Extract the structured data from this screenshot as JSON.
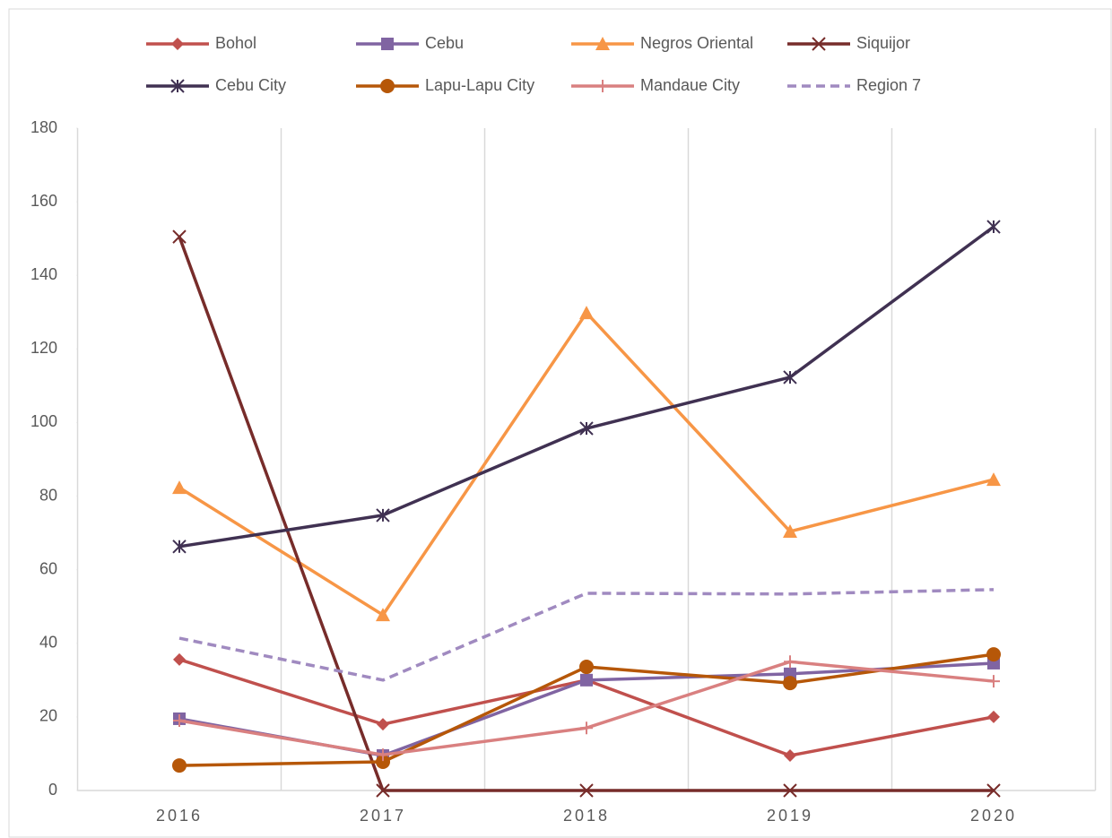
{
  "chart_data": {
    "type": "line",
    "categories": [
      "2016",
      "2017",
      "2018",
      "2019",
      "2020"
    ],
    "series": [
      {
        "name": "Bohol",
        "color": "#c0504d",
        "marker": "diamond",
        "values": [
          35.6,
          18,
          30,
          9.5,
          20
        ]
      },
      {
        "name": "Cebu",
        "color": "#8064a2",
        "marker": "square",
        "values": [
          19.5,
          9.5,
          30,
          31.7,
          34.6
        ]
      },
      {
        "name": "Negros Oriental",
        "color": "#f79646",
        "marker": "triangle",
        "values": [
          82.3,
          47.7,
          129.8,
          70.4,
          84.5
        ]
      },
      {
        "name": "Siquijor",
        "color": "#772c2a",
        "marker": "x",
        "values": [
          150.5,
          0,
          0,
          0,
          0
        ]
      },
      {
        "name": "Cebu City",
        "color": "#403152",
        "marker": "star",
        "values": [
          66.3,
          74.8,
          98.4,
          112.3,
          153.2
        ]
      },
      {
        "name": "Lapu-Lapu City",
        "color": "#b65708",
        "marker": "circle",
        "values": [
          6.8,
          7.8,
          33.6,
          29.2,
          37
        ]
      },
      {
        "name": "Mandaue City",
        "color": "#d98080",
        "marker": "plus",
        "values": [
          19,
          9.7,
          17,
          35,
          29.7
        ]
      },
      {
        "name": "Region 7",
        "color": "#a08ac0",
        "marker": "none",
        "dash": true,
        "values": [
          41.4,
          30,
          53.6,
          53.4,
          54.6
        ]
      }
    ],
    "ylim": [
      0,
      180
    ],
    "yticks": [
      0,
      20,
      40,
      60,
      80,
      100,
      120,
      140,
      160,
      180
    ],
    "grid": true,
    "legend": "top"
  }
}
